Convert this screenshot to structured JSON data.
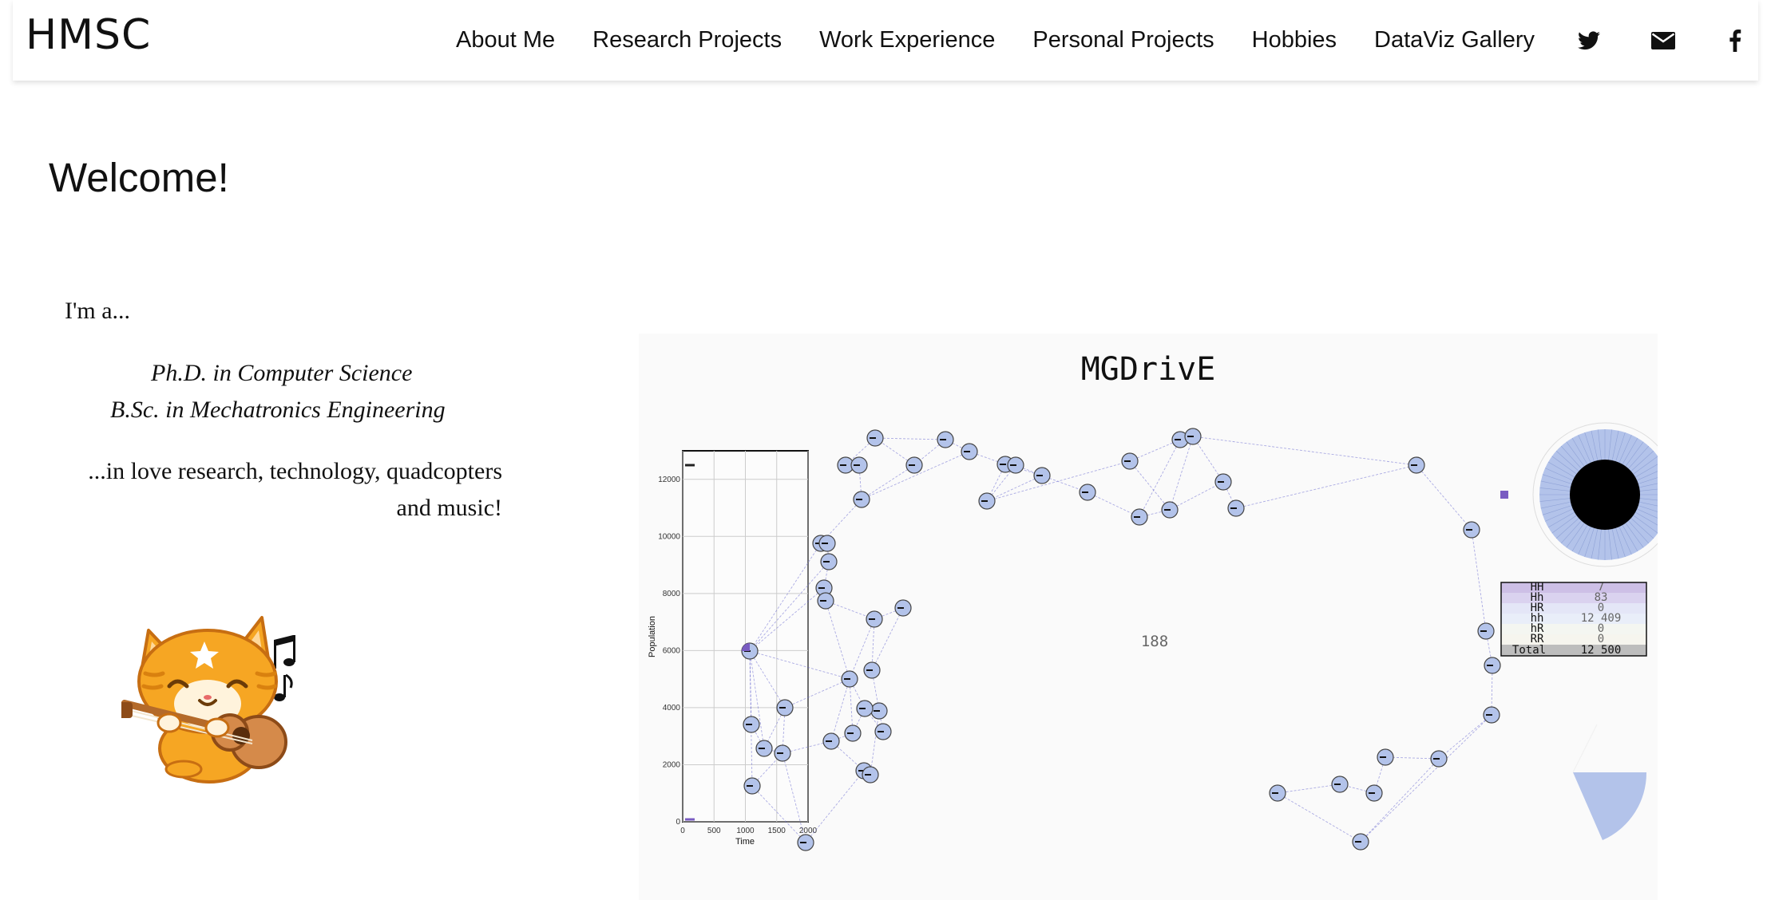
{
  "header": {
    "brand": "HMSC",
    "nav": [
      {
        "label": "About Me"
      },
      {
        "label": "Research Projects"
      },
      {
        "label": "Work Experience"
      },
      {
        "label": "Personal Projects"
      },
      {
        "label": "Hobbies"
      },
      {
        "label": "DataViz Gallery"
      }
    ],
    "social_icons": [
      "twitter-icon",
      "envelope-icon",
      "facebook-icon"
    ]
  },
  "main": {
    "welcome": "Welcome!",
    "intro": "I'm a...",
    "degrees": [
      "Ph.D. in Computer Science",
      "B.Sc. in Mechatronics Engineering"
    ],
    "love_line1": "...in love research, technology, quadcopters",
    "love_line2": "and music!"
  },
  "mgdrive": {
    "title": "MGDrivE",
    "node_count_label": "188",
    "colors": {
      "node": "#b3c3ea",
      "edge": "#6a6ad0",
      "highlight": "#7a5cc2",
      "dark": "#000000"
    },
    "population_chart": {
      "type": "line",
      "xlabel": "Time",
      "ylabel": "Population",
      "xticks": [
        "0",
        "500",
        "1000",
        "1500",
        "2000"
      ],
      "yticks": [
        "0",
        "2000",
        "4000",
        "6000",
        "8000",
        "10000",
        "12000"
      ],
      "xlim": [
        0,
        2000
      ],
      "ylim": [
        0,
        13000
      ],
      "grid": true
    },
    "genotype_table": {
      "rows": [
        {
          "genotype": "HH",
          "count": "7",
          "color": "#cdbfe6"
        },
        {
          "genotype": "Hh",
          "count": "83",
          "color": "#dad2ef"
        },
        {
          "genotype": "HR",
          "count": "0",
          "color": "#e4e6f7"
        },
        {
          "genotype": "hh",
          "count": "12 409",
          "color": "#e9eef9"
        },
        {
          "genotype": "hR",
          "count": "0",
          "color": "#f4f6f1"
        },
        {
          "genotype": "RR",
          "count": "0",
          "color": "#f6f5ee"
        }
      ],
      "total_label": "Total",
      "total_value": "12 500"
    }
  }
}
